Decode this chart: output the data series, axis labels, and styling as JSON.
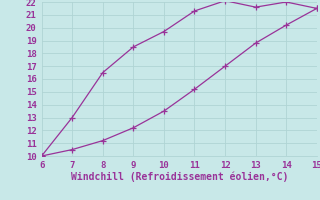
{
  "xlabel": "Windchill (Refroidissement éolien,°C)",
  "background_color": "#c8e8e8",
  "grid_color": "#b0d4d4",
  "line_color": "#993399",
  "xlim": [
    6,
    15
  ],
  "ylim": [
    10,
    22
  ],
  "xticks": [
    6,
    7,
    8,
    9,
    10,
    11,
    12,
    13,
    14,
    15
  ],
  "yticks": [
    10,
    11,
    12,
    13,
    14,
    15,
    16,
    17,
    18,
    19,
    20,
    21,
    22
  ],
  "upper_x": [
    6,
    7,
    8,
    9,
    10,
    11,
    12,
    13,
    14,
    15
  ],
  "upper_y": [
    10.0,
    13.0,
    16.5,
    18.5,
    19.7,
    21.3,
    22.1,
    21.6,
    22.0,
    21.5
  ],
  "lower_x": [
    6,
    7,
    8,
    9,
    10,
    11,
    12,
    13,
    14,
    15
  ],
  "lower_y": [
    10.0,
    10.5,
    11.2,
    12.2,
    13.5,
    15.2,
    17.0,
    18.8,
    20.2,
    21.5
  ],
  "marker_style": "+",
  "marker_size": 4,
  "line_width": 0.9,
  "xlabel_fontsize": 7,
  "tick_fontsize": 6.5
}
